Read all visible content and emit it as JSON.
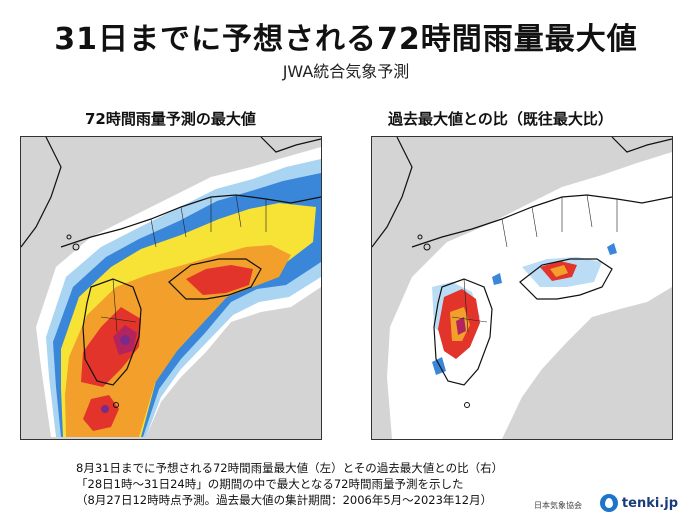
{
  "header": {
    "title": "31日までに予想される72時間雨量最大値",
    "subtitle": "JWA統合気象予測"
  },
  "panels": {
    "left_title": "72時間雨量予測の最大値",
    "right_title": "過去最大値との比（既往最大比）"
  },
  "caption": {
    "line1": "8月31日までに予想される72時間雨量最大値（左）とその過去最大値との比（右）",
    "line2": "「28日1時～31日24時」の期間の中で最大となる72時間雨量予測を示した",
    "line3": "（8月27日12時時点予測。過去最大値の集計期間：2006年5月～2023年12月）"
  },
  "footer": {
    "org": "日本気象協会",
    "logo_text": "tenki.jp",
    "logo_icon": "raindrop-icon"
  },
  "colors": {
    "sea": "#d4d4d4",
    "land": "#ffffff",
    "light_blue": "#a9d4f2",
    "blue": "#3a86d8",
    "yellow": "#f7e335",
    "orange": "#f2a02b",
    "red": "#e2342a",
    "magenta": "#b3245e",
    "purple": "#7b2a8a"
  }
}
